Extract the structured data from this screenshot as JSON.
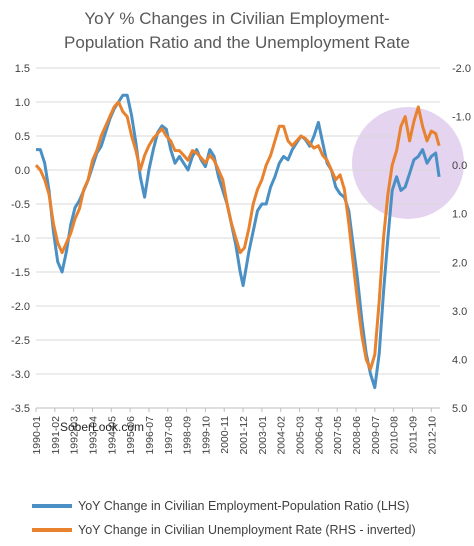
{
  "chart_data": {
    "type": "line",
    "title_lines": [
      "YoY % Changes in Civilian Employment-",
      "Population Ratio and the Unemployment Rate"
    ],
    "x_tick_labels": [
      "1990-01",
      "1991-02",
      "1992-03",
      "1993-04",
      "1994-05",
      "1995-06",
      "1996-07",
      "1997-08",
      "1998-09",
      "1999-10",
      "2000-11",
      "2001-12",
      "2003-01",
      "2004-02",
      "2005-03",
      "2006-04",
      "2007-05",
      "2008-06",
      "2009-07",
      "2010-08",
      "2011-09",
      "2012-10"
    ],
    "left_axis": {
      "min": -3.5,
      "max": 1.5,
      "ticks": [
        "1.5",
        "1.0",
        "0.5",
        "0.0",
        "-0.5",
        "-1.0",
        "-1.5",
        "-2.0",
        "-2.5",
        "-3.0",
        "-3.5"
      ]
    },
    "right_axis": {
      "inverted": true,
      "min": -2.0,
      "max": 5.0,
      "ticks": [
        "-2.0",
        "-1.0",
        "0.0",
        "1.0",
        "2.0",
        "3.0",
        "4.0",
        "5.0"
      ]
    },
    "gridlines": true,
    "series": [
      {
        "name": "YoY Change in Civilian Employment-Population Ratio (LHS)",
        "axis": "left",
        "color": "#4a90c4",
        "points": [
          [
            1990.0,
            0.3
          ],
          [
            1990.25,
            0.3
          ],
          [
            1990.5,
            0.1
          ],
          [
            1990.75,
            -0.3
          ],
          [
            1991.0,
            -0.9
          ],
          [
            1991.25,
            -1.35
          ],
          [
            1991.5,
            -1.5
          ],
          [
            1991.75,
            -1.2
          ],
          [
            1992.0,
            -0.8
          ],
          [
            1992.25,
            -0.55
          ],
          [
            1992.5,
            -0.45
          ],
          [
            1992.75,
            -0.3
          ],
          [
            1993.0,
            -0.15
          ],
          [
            1993.25,
            0.05
          ],
          [
            1993.5,
            0.25
          ],
          [
            1993.75,
            0.35
          ],
          [
            1994.0,
            0.55
          ],
          [
            1994.25,
            0.75
          ],
          [
            1994.5,
            0.9
          ],
          [
            1994.75,
            1.0
          ],
          [
            1995.0,
            1.1
          ],
          [
            1995.25,
            1.1
          ],
          [
            1995.5,
            0.8
          ],
          [
            1995.75,
            0.4
          ],
          [
            1996.0,
            -0.1
          ],
          [
            1996.25,
            -0.4
          ],
          [
            1996.5,
            0.0
          ],
          [
            1996.75,
            0.3
          ],
          [
            1997.0,
            0.55
          ],
          [
            1997.25,
            0.65
          ],
          [
            1997.5,
            0.6
          ],
          [
            1997.75,
            0.3
          ],
          [
            1998.0,
            0.1
          ],
          [
            1998.25,
            0.2
          ],
          [
            1998.5,
            0.1
          ],
          [
            1998.75,
            0.0
          ],
          [
            1999.0,
            0.2
          ],
          [
            1999.25,
            0.3
          ],
          [
            1999.5,
            0.15
          ],
          [
            1999.75,
            0.05
          ],
          [
            2000.0,
            0.3
          ],
          [
            2000.25,
            0.2
          ],
          [
            2000.5,
            -0.1
          ],
          [
            2000.75,
            -0.3
          ],
          [
            2001.0,
            -0.5
          ],
          [
            2001.25,
            -0.8
          ],
          [
            2001.5,
            -1.1
          ],
          [
            2001.75,
            -1.5
          ],
          [
            2001.92,
            -1.7
          ],
          [
            2002.25,
            -1.2
          ],
          [
            2002.5,
            -0.9
          ],
          [
            2002.75,
            -0.6
          ],
          [
            2003.0,
            -0.5
          ],
          [
            2003.25,
            -0.5
          ],
          [
            2003.5,
            -0.25
          ],
          [
            2003.75,
            -0.1
          ],
          [
            2004.0,
            0.1
          ],
          [
            2004.25,
            0.2
          ],
          [
            2004.5,
            0.15
          ],
          [
            2004.75,
            0.3
          ],
          [
            2005.0,
            0.4
          ],
          [
            2005.25,
            0.5
          ],
          [
            2005.5,
            0.45
          ],
          [
            2005.75,
            0.35
          ],
          [
            2006.0,
            0.5
          ],
          [
            2006.25,
            0.7
          ],
          [
            2006.5,
            0.4
          ],
          [
            2006.75,
            0.1
          ],
          [
            2007.0,
            0.0
          ],
          [
            2007.25,
            -0.25
          ],
          [
            2007.5,
            -0.35
          ],
          [
            2007.75,
            -0.4
          ],
          [
            2008.0,
            -0.6
          ],
          [
            2008.25,
            -1.1
          ],
          [
            2008.5,
            -1.6
          ],
          [
            2008.75,
            -2.2
          ],
          [
            2009.0,
            -2.7
          ],
          [
            2009.25,
            -3.0
          ],
          [
            2009.5,
            -3.2
          ],
          [
            2009.75,
            -2.7
          ],
          [
            2010.0,
            -1.8
          ],
          [
            2010.25,
            -1.0
          ],
          [
            2010.5,
            -0.3
          ],
          [
            2010.75,
            -0.1
          ],
          [
            2011.0,
            -0.3
          ],
          [
            2011.25,
            -0.25
          ],
          [
            2011.5,
            -0.05
          ],
          [
            2011.75,
            0.15
          ],
          [
            2012.0,
            0.2
          ],
          [
            2012.25,
            0.3
          ],
          [
            2012.5,
            0.1
          ],
          [
            2012.75,
            0.2
          ],
          [
            2013.0,
            0.25
          ],
          [
            2013.2,
            -0.1
          ]
        ]
      },
      {
        "name": "YoY Change in Civilian Unemployment Rate (RHS - inverted)",
        "axis": "right",
        "color": "#e8822e",
        "points": [
          [
            1990.0,
            0.0
          ],
          [
            1990.25,
            0.1
          ],
          [
            1990.5,
            0.3
          ],
          [
            1990.75,
            0.6
          ],
          [
            1991.0,
            1.2
          ],
          [
            1991.25,
            1.6
          ],
          [
            1991.5,
            1.8
          ],
          [
            1991.75,
            1.6
          ],
          [
            1992.0,
            1.4
          ],
          [
            1992.25,
            1.1
          ],
          [
            1992.5,
            0.9
          ],
          [
            1992.75,
            0.5
          ],
          [
            1993.0,
            0.3
          ],
          [
            1993.25,
            -0.1
          ],
          [
            1993.5,
            -0.3
          ],
          [
            1993.75,
            -0.6
          ],
          [
            1994.0,
            -0.8
          ],
          [
            1994.25,
            -1.0
          ],
          [
            1994.5,
            -1.2
          ],
          [
            1994.75,
            -1.3
          ],
          [
            1995.0,
            -1.1
          ],
          [
            1995.25,
            -1.0
          ],
          [
            1995.5,
            -0.6
          ],
          [
            1995.75,
            -0.3
          ],
          [
            1996.0,
            0.1
          ],
          [
            1996.25,
            -0.2
          ],
          [
            1996.5,
            -0.4
          ],
          [
            1996.75,
            -0.55
          ],
          [
            1997.0,
            -0.65
          ],
          [
            1997.25,
            -0.75
          ],
          [
            1997.5,
            -0.6
          ],
          [
            1997.75,
            -0.5
          ],
          [
            1998.0,
            -0.3
          ],
          [
            1998.25,
            -0.3
          ],
          [
            1998.5,
            -0.2
          ],
          [
            1998.75,
            -0.1
          ],
          [
            1999.0,
            -0.3
          ],
          [
            1999.25,
            -0.25
          ],
          [
            1999.5,
            -0.15
          ],
          [
            1999.75,
            -0.05
          ],
          [
            2000.0,
            -0.2
          ],
          [
            2000.25,
            -0.1
          ],
          [
            2000.5,
            0.1
          ],
          [
            2000.75,
            0.3
          ],
          [
            2001.0,
            0.8
          ],
          [
            2001.25,
            1.2
          ],
          [
            2001.5,
            1.5
          ],
          [
            2001.75,
            1.8
          ],
          [
            2002.0,
            1.7
          ],
          [
            2002.25,
            1.3
          ],
          [
            2002.5,
            0.8
          ],
          [
            2002.75,
            0.5
          ],
          [
            2003.0,
            0.3
          ],
          [
            2003.25,
            0.0
          ],
          [
            2003.5,
            -0.2
          ],
          [
            2003.75,
            -0.5
          ],
          [
            2004.0,
            -0.8
          ],
          [
            2004.25,
            -0.8
          ],
          [
            2004.5,
            -0.5
          ],
          [
            2004.75,
            -0.4
          ],
          [
            2005.0,
            -0.5
          ],
          [
            2005.25,
            -0.6
          ],
          [
            2005.5,
            -0.55
          ],
          [
            2005.75,
            -0.45
          ],
          [
            2006.0,
            -0.35
          ],
          [
            2006.25,
            -0.4
          ],
          [
            2006.5,
            -0.2
          ],
          [
            2006.75,
            -0.1
          ],
          [
            2007.0,
            0.1
          ],
          [
            2007.25,
            0.3
          ],
          [
            2007.5,
            0.2
          ],
          [
            2007.75,
            0.5
          ],
          [
            2008.0,
            1.2
          ],
          [
            2008.25,
            2.0
          ],
          [
            2008.5,
            2.8
          ],
          [
            2008.75,
            3.5
          ],
          [
            2009.0,
            4.0
          ],
          [
            2009.25,
            4.2
          ],
          [
            2009.5,
            3.9
          ],
          [
            2009.75,
            2.8
          ],
          [
            2010.0,
            1.5
          ],
          [
            2010.25,
            0.6
          ],
          [
            2010.5,
            0.0
          ],
          [
            2010.75,
            -0.3
          ],
          [
            2011.0,
            -0.8
          ],
          [
            2011.25,
            -1.0
          ],
          [
            2011.5,
            -0.5
          ],
          [
            2011.75,
            -0.9
          ],
          [
            2012.0,
            -1.2
          ],
          [
            2012.25,
            -0.8
          ],
          [
            2012.5,
            -0.5
          ],
          [
            2012.75,
            -0.7
          ],
          [
            2013.0,
            -0.65
          ],
          [
            2013.2,
            -0.4
          ]
        ]
      }
    ],
    "x_range": [
      1990.0,
      2013.25
    ]
  },
  "watermark": "SoberLook.com",
  "colors": {
    "highlight": "#d7bde6",
    "grid": "#d9d9d9"
  }
}
